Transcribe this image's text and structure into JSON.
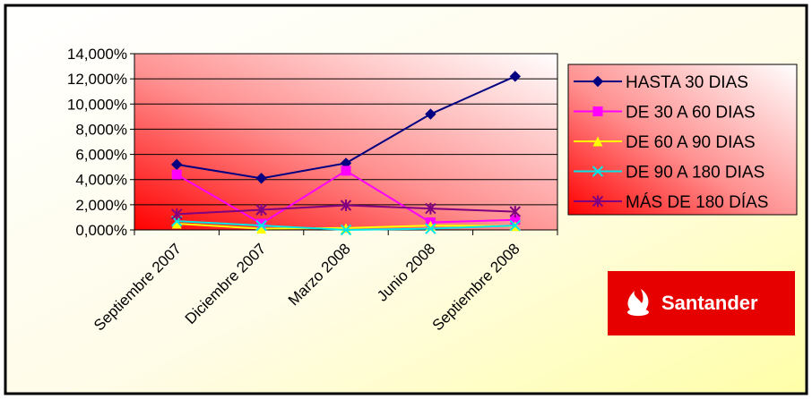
{
  "chart_data": {
    "type": "line",
    "title": "",
    "xlabel": "",
    "ylabel": "",
    "categories": [
      "Septiembre 2007",
      "Diciembre 2007",
      "Marzo 2008",
      "Junio 2008",
      "Septiembre 2008"
    ],
    "ylim": [
      0,
      14
    ],
    "y_ticks": [
      "0,000%",
      "2,000%",
      "4,000%",
      "6,000%",
      "8,000%",
      "10,000%",
      "12,000%",
      "14,000%"
    ],
    "grid": true,
    "legend_position": "right",
    "series": [
      {
        "name": "HASTA 30 DIAS",
        "color": "#000080",
        "marker": "diamond",
        "values": [
          5.2,
          4.1,
          5.3,
          9.2,
          12.2
        ]
      },
      {
        "name": "DE 30 A 60 DIAS",
        "color": "#ff00ff",
        "marker": "square",
        "values": [
          4.4,
          0.5,
          4.7,
          0.6,
          0.8
        ]
      },
      {
        "name": "DE 60 A 90 DIAS",
        "color": "#ffff00",
        "marker": "triangle",
        "values": [
          0.5,
          0.1,
          0.15,
          0.35,
          0.3
        ]
      },
      {
        "name": "DE 90 A 180 DIAS",
        "color": "#00e5e5",
        "marker": "x",
        "values": [
          0.7,
          0.35,
          0.0,
          0.1,
          0.35
        ]
      },
      {
        "name": "MÁS DE 180 DÍAS",
        "color": "#800080",
        "marker": "star",
        "values": [
          1.25,
          1.6,
          1.95,
          1.7,
          1.45
        ]
      }
    ]
  },
  "logo": {
    "text": "Santander",
    "background": "#e60000",
    "icon": "flame-logo-icon"
  }
}
